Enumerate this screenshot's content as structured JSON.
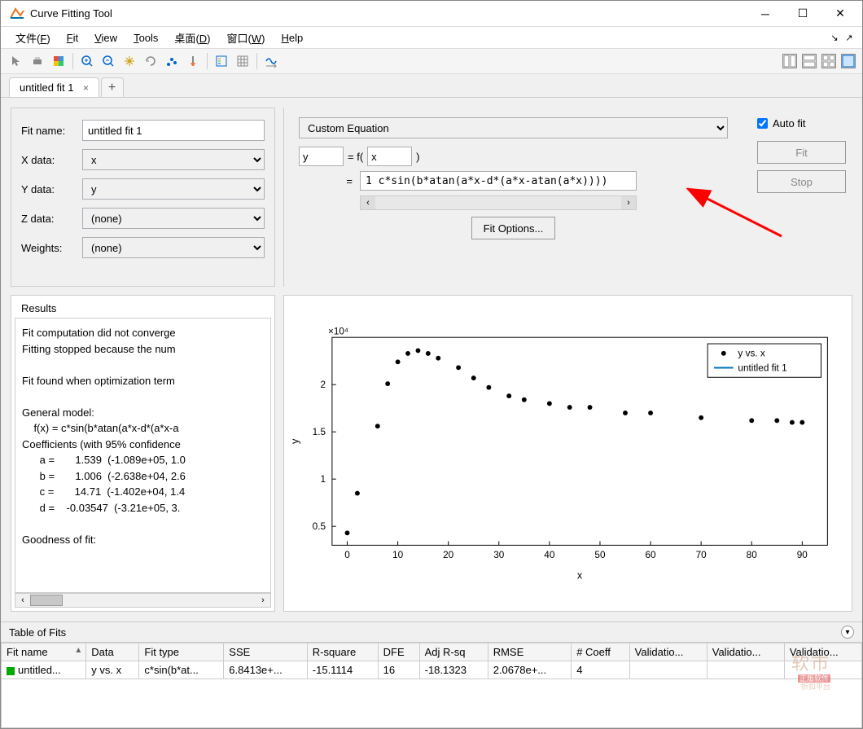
{
  "window": {
    "title": "Curve Fitting Tool"
  },
  "menu": {
    "file": "文件",
    "file_u": "F",
    "fit": "Fit",
    "view": "View",
    "tools": "Tools",
    "desktop": "桌面",
    "desktop_u": "D",
    "windowmenu": "窗口",
    "window_u": "W",
    "help": "Help"
  },
  "tab": {
    "label": "untitled fit 1"
  },
  "form": {
    "fitname_label": "Fit name:",
    "fitname_value": "untitled fit 1",
    "xdata_label": "X data:",
    "xdata_value": "x",
    "ydata_label": "Y data:",
    "ydata_value": "y",
    "zdata_label": "Z data:",
    "zdata_value": "(none)",
    "weights_label": "Weights:",
    "weights_value": "(none)"
  },
  "equation": {
    "type": "Custom Equation",
    "lhs": "y",
    "eq1": "= f(",
    "argv": "x",
    "eq2": ")",
    "eq3": "=",
    "expr": "1 c*sin(b*atan(a*x-d*(a*x-atan(a*x))))",
    "fit_options": "Fit Options..."
  },
  "rightpanel": {
    "auto_fit": "Auto fit",
    "fit_btn": "Fit",
    "stop_btn": "Stop"
  },
  "results": {
    "heading": "Results",
    "text": "Fit computation did not converge\nFitting stopped because the num\n\nFit found when optimization term\n\nGeneral model:\n    f(x) = c*sin(b*atan(a*x-d*(a*x-a\nCoefficients (with 95% confidence\n      a =       1.539  (-1.089e+05, 1.0\n      b =       1.006  (-2.638e+04, 2.6\n      c =       14.71  (-1.402e+04, 1.4\n      d =    -0.03547  (-3.21e+05, 3.\n\nGoodness of fit:"
  },
  "chart": {
    "y_exp": "×10⁴",
    "xlabel": "x",
    "ylabel": "y",
    "xlim": [
      -3,
      95
    ],
    "ylim": [
      0.3,
      2.5
    ],
    "xticks": [
      0,
      10,
      20,
      30,
      40,
      50,
      60,
      70,
      80,
      90
    ],
    "yticks": [
      0.5,
      1.0,
      1.5,
      2.0
    ],
    "legend": {
      "series": "y vs. x",
      "fit": "untitled fit 1"
    },
    "points": [
      [
        0,
        0.43
      ],
      [
        2,
        0.85
      ],
      [
        6,
        1.56
      ],
      [
        8,
        2.01
      ],
      [
        10,
        2.24
      ],
      [
        12,
        2.33
      ],
      [
        14,
        2.36
      ],
      [
        16,
        2.33
      ],
      [
        18,
        2.28
      ],
      [
        22,
        2.18
      ],
      [
        25,
        2.07
      ],
      [
        28,
        1.97
      ],
      [
        32,
        1.88
      ],
      [
        35,
        1.84
      ],
      [
        40,
        1.8
      ],
      [
        44,
        1.76
      ],
      [
        48,
        1.76
      ],
      [
        55,
        1.7
      ],
      [
        60,
        1.7
      ],
      [
        70,
        1.65
      ],
      [
        80,
        1.62
      ],
      [
        85,
        1.62
      ],
      [
        88,
        1.6
      ],
      [
        90,
        1.6
      ]
    ],
    "marker_color": "#000000",
    "line_color": "#0072bd",
    "axis_color": "#000000",
    "bg_color": "#ffffff"
  },
  "table": {
    "heading": "Table of Fits",
    "cols": [
      "Fit name",
      "Data",
      "Fit type",
      "SSE",
      "R-square",
      "DFE",
      "Adj R-sq",
      "RMSE",
      "# Coeff",
      "Validatio...",
      "Validatio...",
      "Validatio..."
    ],
    "row": [
      "untitled...",
      "y vs. x",
      "c*sin(b*at...",
      "6.8413e+...",
      "-15.1114",
      "16",
      "-18.1323",
      "2.0678e+...",
      "4",
      "",
      "",
      ""
    ]
  },
  "watermark": {
    "main": "软市",
    "tag1": "正版软件",
    "tag2": "折扣平台"
  }
}
